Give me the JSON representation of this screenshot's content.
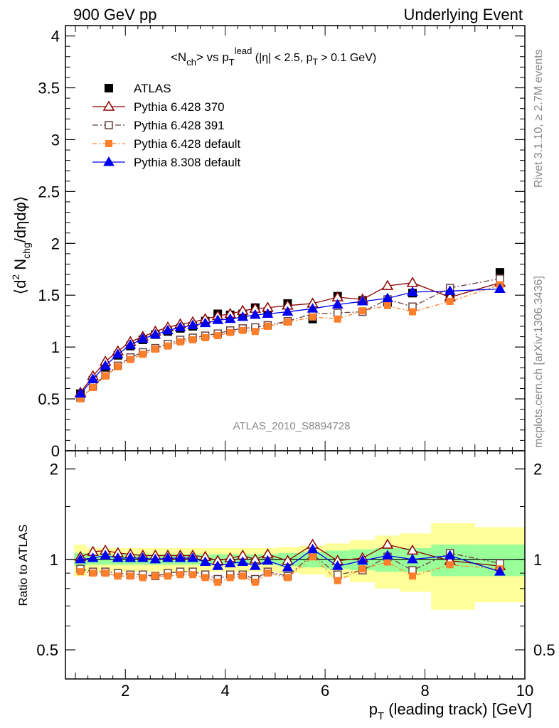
{
  "header": {
    "left_title": "900 GeV pp",
    "right_title": "Underlying Event"
  },
  "side_text": {
    "rivet": "Rivet 3.1.10, ≥ 2.7M events",
    "mcplots": "mcplots.cern.ch [arXiv:1306.3436]"
  },
  "analysis_label": "ATLAS_2010_S8894728",
  "colors": {
    "ATLAS": "#000000",
    "Pythia 6.428 370": "#8b0000",
    "Pythia 6.428 391": "#6b4040",
    "Pythia 6.428 default": "#ff7f2a",
    "Pythia 8.308 default": "#0000ee",
    "band_inner": "#99ff99",
    "band_outer": "#ffff99"
  },
  "chart_data": [
    {
      "type": "line",
      "title": "<N_ch> vs p_T^lead (|η| < 2.5, p_T > 0.1 GeV)",
      "ylabel": "⟨d² N_chg/dηdφ⟩",
      "ylim": [
        0,
        4.1
      ],
      "yticks": [
        "0",
        "0.5",
        "1",
        "1.5",
        "2",
        "2.5",
        "3",
        "3.5",
        "4"
      ],
      "legend_placement": "top-left",
      "x": [
        1.1,
        1.35,
        1.6,
        1.85,
        2.1,
        2.35,
        2.6,
        2.85,
        3.1,
        3.35,
        3.6,
        3.85,
        4.1,
        4.35,
        4.6,
        4.85,
        5.25,
        5.75,
        6.25,
        6.75,
        7.25,
        7.75,
        8.5,
        9.5
      ],
      "series": [
        {
          "name": "ATLAS",
          "values": [
            0.55,
            0.68,
            0.8,
            0.92,
            1.01,
            1.07,
            1.12,
            1.15,
            1.18,
            1.2,
            1.25,
            1.32,
            1.31,
            1.32,
            1.38,
            1.33,
            1.42,
            1.27,
            1.49,
            1.45,
            1.43,
            1.52,
            1.5,
            1.72
          ]
        },
        {
          "name": "Pythia 6.428 370",
          "values": [
            0.56,
            0.72,
            0.86,
            0.96,
            1.05,
            1.1,
            1.15,
            1.19,
            1.22,
            1.24,
            1.27,
            1.3,
            1.32,
            1.35,
            1.37,
            1.38,
            1.4,
            1.42,
            1.48,
            1.46,
            1.59,
            1.62,
            1.48,
            1.62
          ]
        },
        {
          "name": "Pythia 6.428 391",
          "values": [
            0.51,
            0.62,
            0.73,
            0.82,
            0.9,
            0.95,
            0.99,
            1.03,
            1.07,
            1.09,
            1.11,
            1.13,
            1.16,
            1.18,
            1.19,
            1.21,
            1.25,
            1.32,
            1.33,
            1.34,
            1.46,
            1.39,
            1.57,
            1.66
          ]
        },
        {
          "name": "Pythia 6.428 default",
          "values": [
            0.5,
            0.61,
            0.72,
            0.81,
            0.88,
            0.93,
            0.98,
            1.01,
            1.05,
            1.07,
            1.09,
            1.11,
            1.14,
            1.16,
            1.15,
            1.2,
            1.24,
            1.29,
            1.27,
            1.35,
            1.4,
            1.34,
            1.44,
            1.6
          ]
        },
        {
          "name": "Pythia 8.308 default",
          "values": [
            0.55,
            0.69,
            0.82,
            0.93,
            1.02,
            1.08,
            1.12,
            1.16,
            1.19,
            1.21,
            1.23,
            1.26,
            1.27,
            1.29,
            1.31,
            1.32,
            1.34,
            1.37,
            1.41,
            1.44,
            1.47,
            1.53,
            1.54,
            1.56
          ]
        }
      ]
    },
    {
      "type": "line",
      "xlabel": "p_T (leading track) [GeV]",
      "ylabel": "Ratio to ATLAS",
      "ylim": [
        0.4,
        2.3
      ],
      "xlim": [
        0.8,
        10
      ],
      "xticks": [
        "2",
        "4",
        "6",
        "8",
        "10"
      ],
      "yticks": [
        "0.5",
        "1",
        "2"
      ],
      "y_scale": "log",
      "x": [
        1.1,
        1.35,
        1.6,
        1.85,
        2.1,
        2.35,
        2.6,
        2.85,
        3.1,
        3.35,
        3.6,
        3.85,
        4.1,
        4.35,
        4.6,
        4.85,
        5.25,
        5.75,
        6.25,
        6.75,
        7.25,
        7.75,
        8.5,
        9.5
      ],
      "band_inner": [
        0.05,
        0.04,
        0.04,
        0.04,
        0.04,
        0.04,
        0.04,
        0.04,
        0.04,
        0.04,
        0.04,
        0.04,
        0.04,
        0.04,
        0.04,
        0.04,
        0.05,
        0.06,
        0.07,
        0.08,
        0.09,
        0.09,
        0.12,
        0.12
      ],
      "band_outer": [
        0.12,
        0.09,
        0.09,
        0.09,
        0.09,
        0.09,
        0.09,
        0.09,
        0.09,
        0.09,
        0.09,
        0.09,
        0.09,
        0.09,
        0.09,
        0.09,
        0.1,
        0.11,
        0.13,
        0.16,
        0.2,
        0.22,
        0.32,
        0.28
      ],
      "series": [
        {
          "name": "Pythia 6.428 370",
          "values": [
            1.02,
            1.06,
            1.07,
            1.05,
            1.04,
            1.03,
            1.03,
            1.03,
            1.03,
            1.03,
            1.02,
            0.99,
            1.01,
            1.03,
            1.0,
            1.04,
            0.99,
            1.12,
            0.99,
            1.01,
            1.12,
            1.07,
            0.99,
            0.95
          ]
        },
        {
          "name": "Pythia 6.428 391",
          "values": [
            0.93,
            0.91,
            0.91,
            0.9,
            0.89,
            0.89,
            0.88,
            0.9,
            0.91,
            0.91,
            0.89,
            0.86,
            0.89,
            0.89,
            0.86,
            0.91,
            0.88,
            1.04,
            0.89,
            0.92,
            1.02,
            0.92,
            1.05,
            0.97
          ]
        },
        {
          "name": "Pythia 6.428 default",
          "values": [
            0.91,
            0.9,
            0.9,
            0.88,
            0.88,
            0.87,
            0.88,
            0.88,
            0.89,
            0.89,
            0.87,
            0.84,
            0.87,
            0.88,
            0.84,
            0.9,
            0.87,
            1.02,
            0.85,
            0.93,
            0.98,
            0.88,
            0.96,
            0.93
          ]
        },
        {
          "name": "Pythia 8.308 default",
          "values": [
            1.0,
            1.01,
            1.03,
            1.01,
            1.01,
            1.01,
            1.0,
            1.01,
            1.01,
            1.01,
            0.98,
            0.95,
            0.97,
            0.98,
            0.95,
            0.99,
            0.94,
            1.08,
            0.95,
            0.99,
            1.03,
            1.0,
            1.03,
            0.91
          ]
        }
      ]
    }
  ]
}
